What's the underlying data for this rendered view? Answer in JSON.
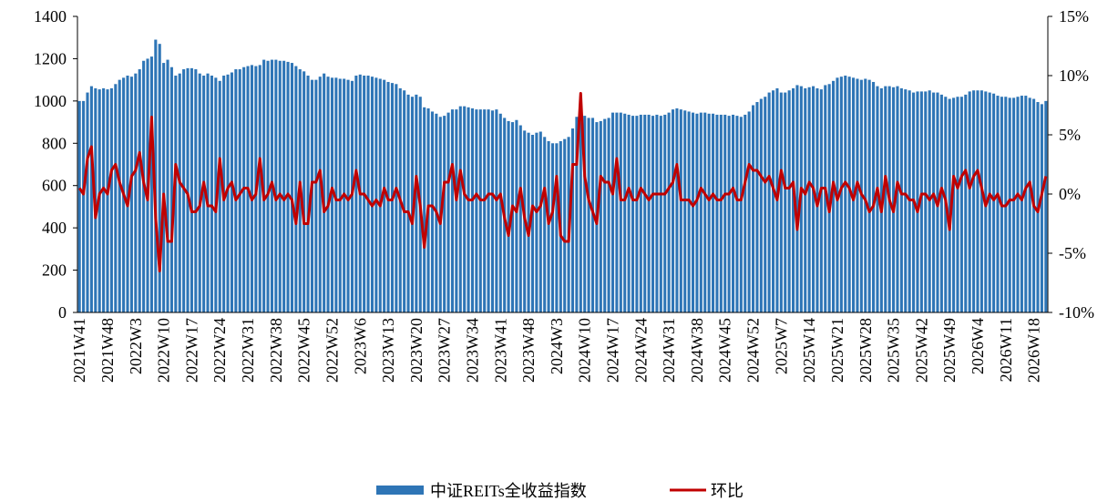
{
  "chart_data": {
    "type": "bar-line",
    "categories": [
      "2021W41",
      null,
      null,
      null,
      null,
      null,
      null,
      "2021W48",
      null,
      null,
      null,
      null,
      null,
      null,
      "2022W3",
      null,
      null,
      null,
      null,
      null,
      null,
      "2022W10",
      null,
      null,
      null,
      null,
      null,
      null,
      "2022W17",
      null,
      null,
      null,
      null,
      null,
      null,
      "2022W24",
      null,
      null,
      null,
      null,
      null,
      null,
      "2022W31",
      null,
      null,
      null,
      null,
      null,
      null,
      "2022W38",
      null,
      null,
      null,
      null,
      null,
      null,
      "2022W45",
      null,
      null,
      null,
      null,
      null,
      null,
      "2022W52",
      null,
      null,
      null,
      null,
      null,
      null,
      "2023W6",
      null,
      null,
      null,
      null,
      null,
      null,
      "2023W13",
      null,
      null,
      null,
      null,
      null,
      null,
      "2023W20",
      null,
      null,
      null,
      null,
      null,
      null,
      "2023W27",
      null,
      null,
      null,
      null,
      null,
      null,
      "2023W34",
      null,
      null,
      null,
      null,
      null,
      null,
      "2023W41",
      null,
      null,
      null,
      null,
      null,
      null,
      "2023W48",
      null,
      null,
      null,
      null,
      null,
      null,
      "2024W3",
      null,
      null,
      null,
      null,
      null,
      null,
      "2024W10",
      null,
      null,
      null,
      null,
      null,
      null,
      "2024W17",
      null,
      null,
      null,
      null,
      null,
      null,
      "2024W24",
      null,
      null,
      null,
      null,
      null,
      null,
      "2024W31",
      null,
      null,
      null,
      null,
      null,
      null,
      "2024W38",
      null,
      null,
      null,
      null,
      null,
      null,
      "2024W45",
      null,
      null,
      null,
      null,
      null,
      null,
      "2024W52",
      null,
      null,
      null,
      null,
      null,
      null,
      "2025W7",
      null,
      null,
      null,
      null,
      null,
      null,
      "2025W14",
      null,
      null,
      null,
      null,
      null,
      null,
      "2025W21",
      null,
      null,
      null,
      null,
      null,
      null,
      "2025W28",
      null,
      null,
      null,
      null,
      null,
      null,
      "2025W35",
      null,
      null,
      null,
      null,
      null,
      null,
      "2025W42",
      null,
      null,
      null,
      null,
      null,
      null,
      "2025W49",
      null,
      null,
      null,
      null,
      null,
      null,
      "2026W4",
      null,
      null,
      null,
      null,
      null,
      null,
      "2026W11",
      null,
      null,
      null,
      null,
      null,
      null,
      "2026W18",
      null,
      null,
      null
    ],
    "series": [
      {
        "name": "中证REITs全收益指数",
        "color": "#2e75b6",
        "values": [
          1000,
          1000,
          1040,
          1070,
          1060,
          1055,
          1060,
          1055,
          1060,
          1080,
          1100,
          1110,
          1120,
          1115,
          1130,
          1150,
          1190,
          1200,
          1210,
          1290,
          1270,
          1180,
          1195,
          1160,
          1120,
          1130,
          1150,
          1155,
          1155,
          1150,
          1130,
          1120,
          1130,
          1120,
          1110,
          1095,
          1120,
          1125,
          1135,
          1150,
          1150,
          1160,
          1165,
          1170,
          1165,
          1170,
          1195,
          1190,
          1195,
          1195,
          1190,
          1190,
          1185,
          1180,
          1165,
          1150,
          1140,
          1120,
          1100,
          1100,
          1115,
          1130,
          1115,
          1110,
          1110,
          1105,
          1105,
          1100,
          1095,
          1120,
          1125,
          1120,
          1120,
          1115,
          1110,
          1105,
          1100,
          1090,
          1085,
          1080,
          1060,
          1050,
          1030,
          1020,
          1030,
          1020,
          970,
          965,
          950,
          940,
          925,
          930,
          945,
          960,
          960,
          975,
          975,
          970,
          965,
          960,
          960,
          960,
          960,
          955,
          960,
          940,
          920,
          905,
          900,
          910,
          885,
          860,
          850,
          840,
          850,
          855,
          830,
          810,
          800,
          800,
          810,
          820,
          830,
          870,
          925,
          1020,
          930,
          920,
          920,
          900,
          905,
          915,
          920,
          945,
          945,
          945,
          940,
          935,
          930,
          930,
          935,
          935,
          935,
          930,
          935,
          930,
          935,
          945,
          960,
          965,
          960,
          955,
          950,
          945,
          940,
          945,
          945,
          940,
          940,
          935,
          935,
          935,
          930,
          935,
          930,
          925,
          935,
          950,
          980,
          995,
          1010,
          1020,
          1040,
          1050,
          1060,
          1040,
          1040,
          1050,
          1060,
          1075,
          1070,
          1060,
          1065,
          1070,
          1060,
          1055,
          1075,
          1080,
          1095,
          1110,
          1115,
          1120,
          1115,
          1110,
          1105,
          1100,
          1105,
          1100,
          1090,
          1070,
          1060,
          1070,
          1070,
          1065,
          1070,
          1060,
          1055,
          1050,
          1040,
          1045,
          1045,
          1045,
          1050,
          1040,
          1040,
          1030,
          1020,
          1010,
          1015,
          1020,
          1020,
          1030,
          1045,
          1050,
          1050,
          1050,
          1045,
          1040,
          1035,
          1025,
          1020,
          1020,
          1015,
          1015,
          1020,
          1025,
          1025,
          1015,
          1010,
          995,
          985,
          1000
        ]
      },
      {
        "name": "环比",
        "color": "#c00000",
        "axis": "y2",
        "values": [
          0.5,
          0,
          3,
          4,
          -2,
          0,
          0.5,
          0,
          2,
          2.5,
          1,
          0,
          -1,
          1.5,
          2,
          3.5,
          1,
          -0.5,
          6.5,
          -2,
          -6.5,
          0,
          -4,
          -4,
          2.5,
          1,
          0.5,
          0,
          -1.5,
          -1.5,
          -1,
          1,
          -1,
          -1,
          -1.5,
          3,
          -0.5,
          0.5,
          1,
          -0.5,
          0,
          0.5,
          0.5,
          -0.5,
          0,
          3,
          -0.5,
          0,
          1,
          -0.5,
          0,
          -0.5,
          0,
          -0.5,
          -2.5,
          1,
          -2.5,
          -2.5,
          1,
          1,
          2,
          -1.5,
          -1,
          0.5,
          -0.5,
          -0.5,
          0,
          -0.5,
          0,
          2,
          0,
          0,
          -0.5,
          -1,
          -0.5,
          -1,
          0.5,
          -0.5,
          -0.5,
          0.5,
          -0.5,
          -1.5,
          -1.5,
          -2.5,
          1.5,
          -1,
          -4.5,
          -1,
          -1,
          -1.5,
          -2.5,
          1,
          1,
          2.5,
          -0.5,
          2,
          0,
          -0.5,
          -0.5,
          0,
          -0.5,
          -0.5,
          0,
          0,
          -0.5,
          0,
          -2,
          -3.5,
          -1,
          -1.5,
          0.5,
          -2,
          -3.5,
          -1,
          -1.5,
          -1,
          0.5,
          -2.5,
          -1.5,
          1.5,
          -3.5,
          -4,
          -4,
          2.5,
          2.5,
          8.5,
          1.5,
          -0.5,
          -1.5,
          -2.5,
          1.5,
          1,
          1,
          0,
          3,
          -0.5,
          -0.5,
          0.5,
          -0.5,
          -0.5,
          0.5,
          0,
          -0.5,
          0,
          0,
          0,
          0,
          0.5,
          1,
          2.5,
          -0.5,
          -0.5,
          -0.5,
          -1,
          -0.5,
          0.5,
          0,
          -0.5,
          0,
          -0.5,
          -0.5,
          0,
          0,
          0.5,
          -0.5,
          -0.5,
          1,
          2.5,
          2,
          2,
          1.5,
          1,
          1.5,
          0.5,
          -0.5,
          2,
          0.5,
          0.5,
          1,
          -3,
          0.5,
          0,
          1,
          0.5,
          -1,
          0.5,
          0.5,
          -1.5,
          1,
          -0.5,
          0.5,
          1,
          0.5,
          -0.5,
          1,
          0,
          -0.5,
          -1.5,
          -1,
          0.5,
          -1.5,
          1.5,
          -0.5,
          -1.5,
          1,
          0,
          0,
          -0.5,
          -0.5,
          -1.5,
          0,
          0,
          -0.5,
          0,
          -1,
          0.5,
          -0.5,
          -3,
          1.5,
          0.5,
          1.5,
          2,
          0.5,
          1.5,
          2,
          0.5,
          -1,
          0,
          -0.5,
          0,
          -1,
          -1,
          -0.5,
          -0.5,
          0,
          -0.5,
          0.5,
          1,
          -1,
          -1.5,
          0,
          1.5
        ]
      }
    ],
    "ylim": [
      0,
      1400
    ],
    "yticks": [
      0,
      200,
      400,
      600,
      800,
      1000,
      1200,
      1400
    ],
    "y2lim": [
      -10,
      15
    ],
    "y2ticks": [
      {
        "value": -10,
        "label": "-10%"
      },
      {
        "value": -5,
        "label": "-5%"
      },
      {
        "value": 0,
        "label": "0%"
      },
      {
        "value": 5,
        "label": "5%"
      },
      {
        "value": 10,
        "label": "10%"
      },
      {
        "value": 15,
        "label": "15%"
      }
    ],
    "grid": false
  }
}
